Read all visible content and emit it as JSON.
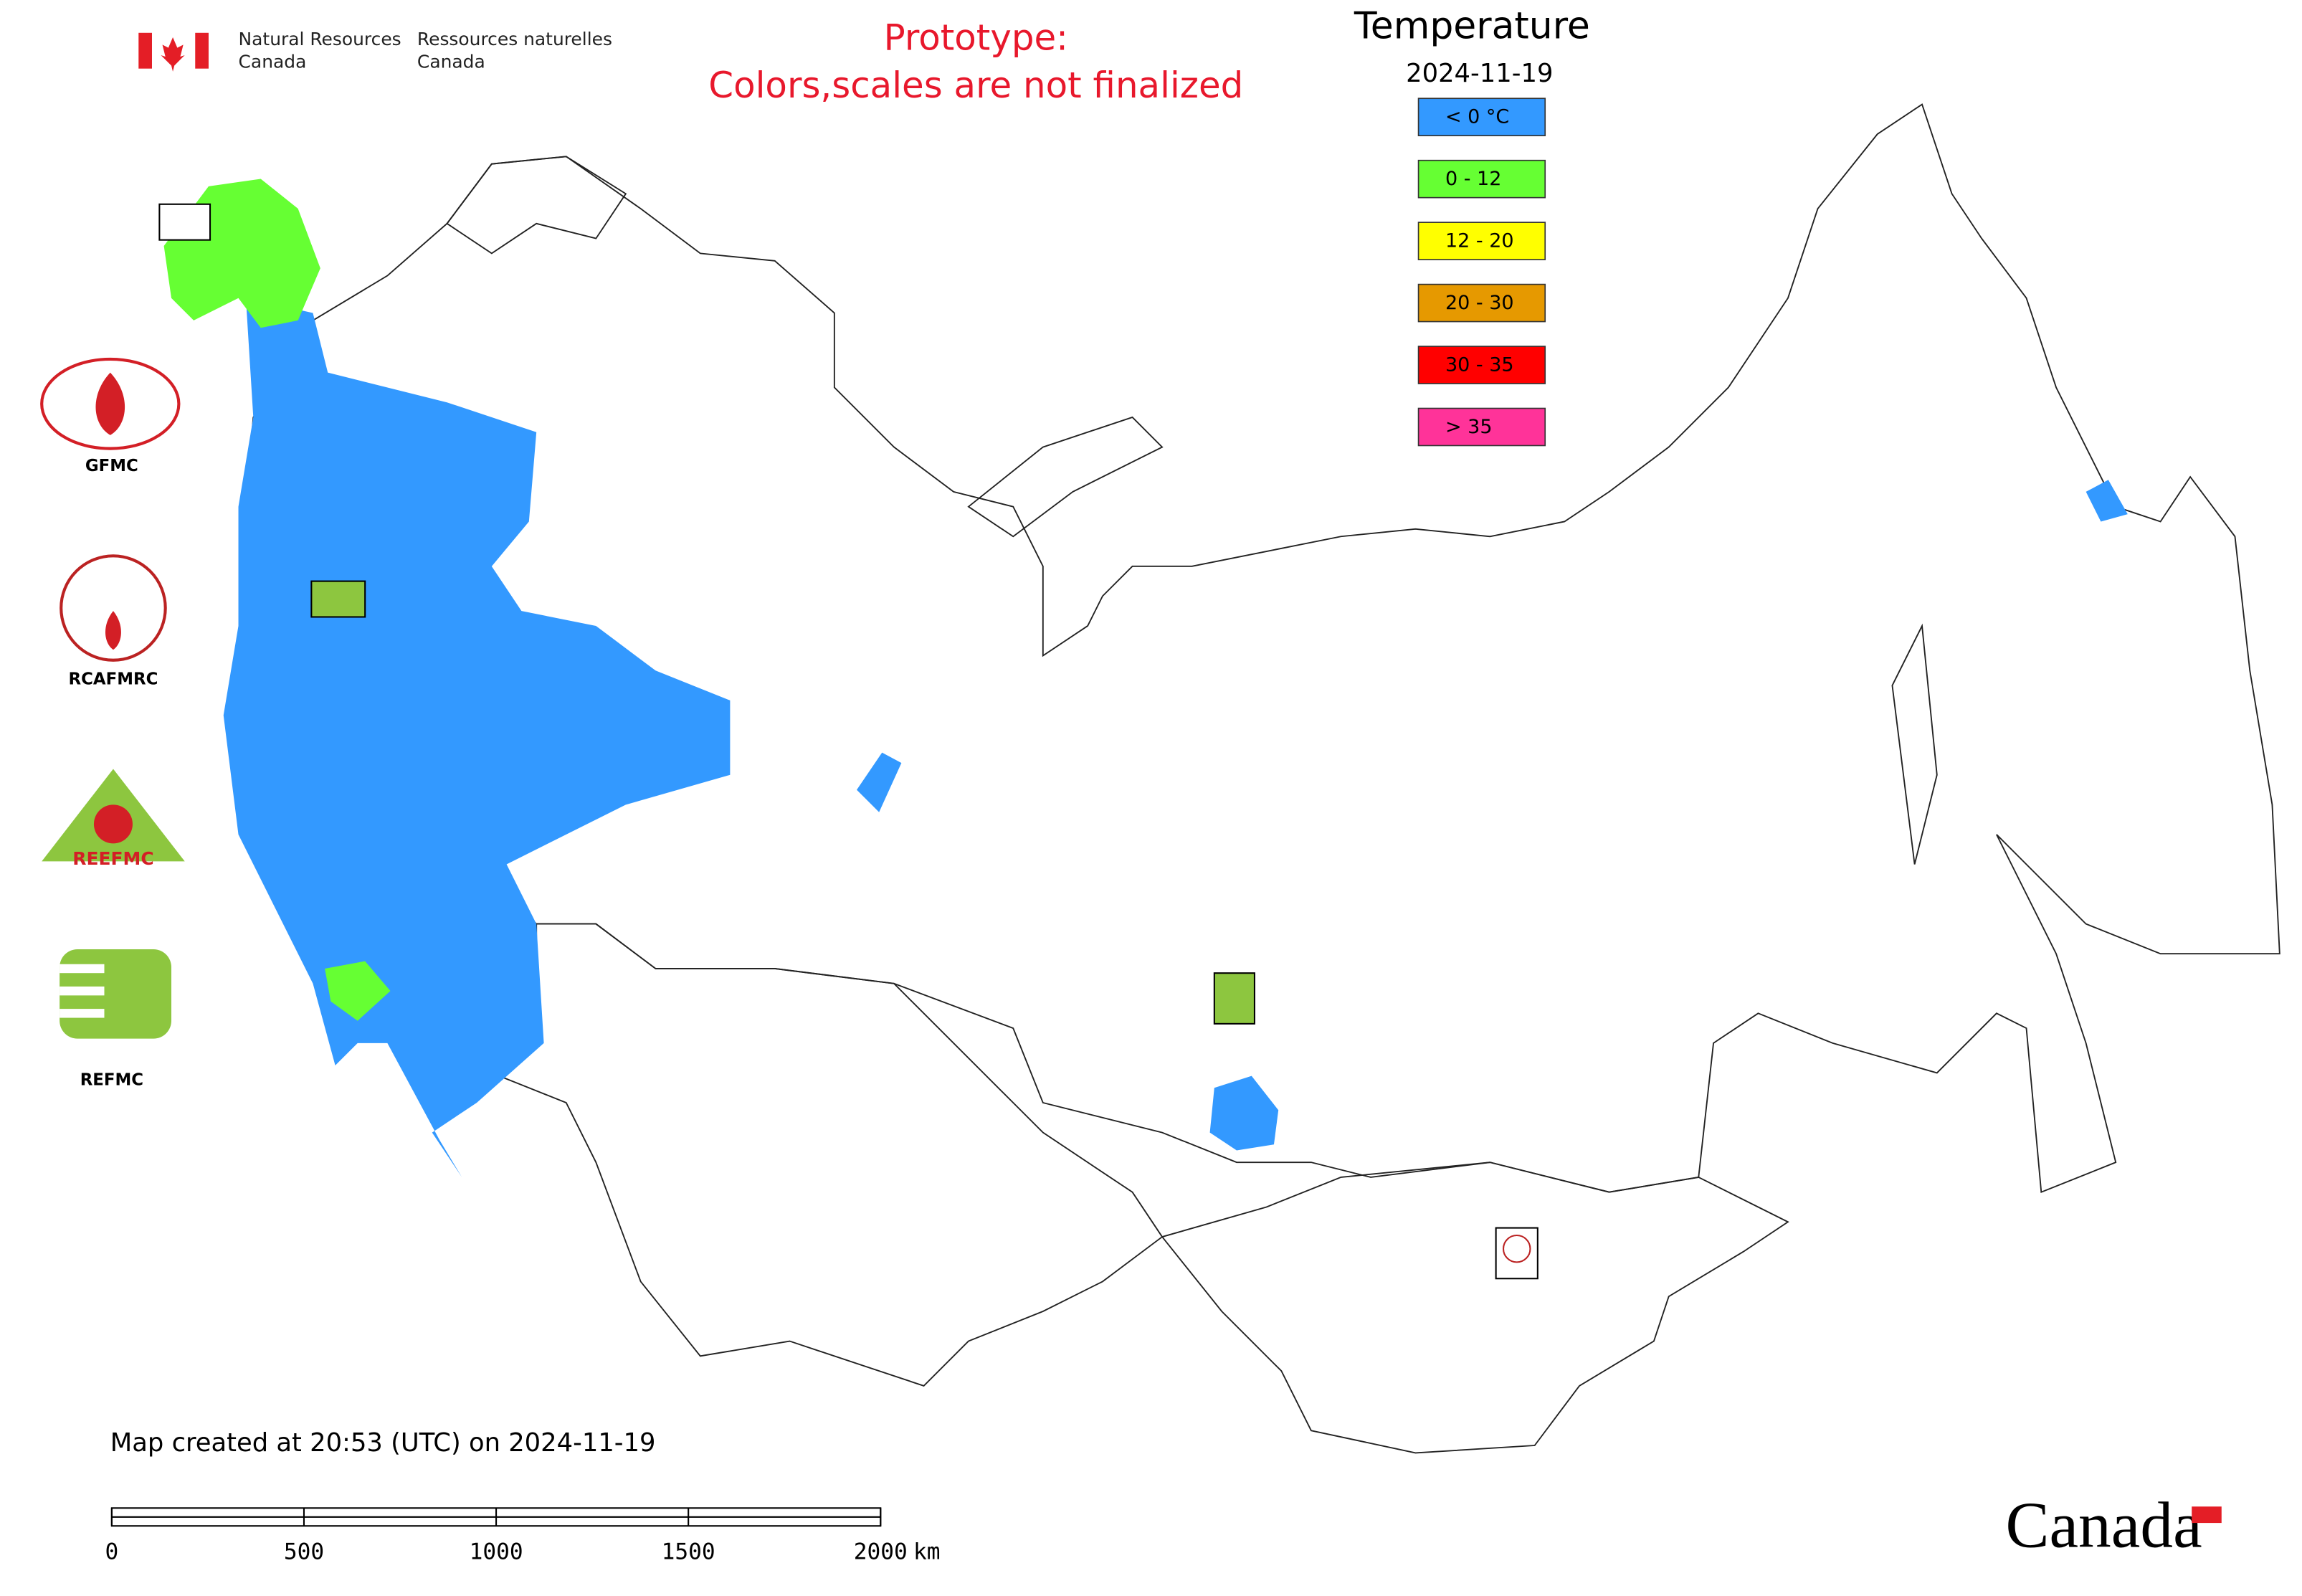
{
  "header": {
    "agency_en": [
      "Natural Resources",
      "Canada"
    ],
    "agency_fr": [
      "Ressources naturelles",
      "Canada"
    ],
    "notice": [
      "Prototype:",
      "Colors,scales are not finalized"
    ]
  },
  "legend": {
    "title": "Temperature",
    "date": "2024-11-19",
    "classes": [
      {
        "label": "< 0 °C",
        "color": "#3399ff"
      },
      {
        "label": "0 - 12",
        "color": "#66ff33"
      },
      {
        "label": "12 - 20",
        "color": "#ffff00"
      },
      {
        "label": "20 - 30",
        "color": "#e69900"
      },
      {
        "label": "30 - 35",
        "color": "#ff0000"
      },
      {
        "label": "> 35",
        "color": "#ff3399"
      }
    ]
  },
  "logos": [
    "GFMC",
    "RCAFMRC",
    "REEFMC",
    "REFMC"
  ],
  "footer": {
    "created": "Map created at 20:53 (UTC) on 2024-11-19",
    "scale": {
      "ticks": [
        0,
        500,
        1000,
        1500,
        2000
      ],
      "unit": "km"
    },
    "wordmark": "Canada"
  }
}
